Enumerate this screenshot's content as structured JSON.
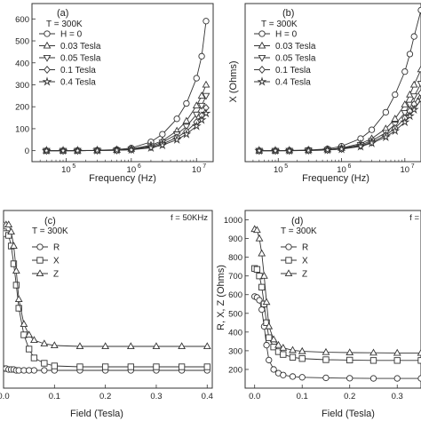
{
  "colors": {
    "axis": "#333333",
    "series": "#333333",
    "background": "#ffffff"
  },
  "chart_data": [
    {
      "type": "line",
      "panel_label": "(a)",
      "annotation": "T = 300K",
      "xlabel": "Frequency (Hz)",
      "ylabel": "",
      "xscale": "log",
      "xlim": [
        30000,
        18000000
      ],
      "ylim": [
        -50,
        670
      ],
      "xticks": [
        100000,
        1000000,
        10000000
      ],
      "xtick_labels": [
        "10",
        "10",
        "10"
      ],
      "xtick_exponents": [
        "5",
        "6",
        "7"
      ],
      "yticks": [
        0,
        100,
        200,
        300,
        400,
        500,
        600
      ],
      "ytick_labels": [
        "0",
        "100",
        "200",
        "300",
        "400",
        "500",
        "600"
      ],
      "legend_position": "top-left",
      "x": [
        50000,
        90000,
        150000,
        300000,
        600000,
        1000000,
        2000000,
        3000000,
        5000000,
        7000000,
        10000000,
        12000000,
        14000000
      ],
      "series": [
        {
          "name": "H = 0",
          "marker": "circle",
          "values": [
            0,
            0,
            1,
            2,
            5,
            12,
            40,
            75,
            145,
            215,
            330,
            430,
            590
          ]
        },
        {
          "name": "0.03 Tesla",
          "marker": "triangle-up",
          "values": [
            0,
            0,
            0,
            1,
            3,
            8,
            25,
            45,
            90,
            135,
            205,
            250,
            300
          ]
        },
        {
          "name": "0.05 Tesla",
          "marker": "triangle-down",
          "values": [
            0,
            0,
            0,
            1,
            2,
            6,
            20,
            38,
            75,
            110,
            165,
            205,
            250
          ]
        },
        {
          "name": "0.1 Tesla",
          "marker": "diamond",
          "values": [
            0,
            0,
            0,
            1,
            2,
            5,
            16,
            30,
            60,
            88,
            130,
            160,
            195
          ]
        },
        {
          "name": "0.4 Tesla",
          "marker": "star",
          "values": [
            0,
            0,
            0,
            1,
            2,
            4,
            13,
            25,
            50,
            75,
            112,
            140,
            170
          ]
        }
      ]
    },
    {
      "type": "line",
      "panel_label": "(b)",
      "annotation": "T = 300K",
      "xlabel": "Frequency (Hz)",
      "ylabel": "X (Ohms)",
      "xscale": "log",
      "xlim": [
        30000,
        18000000
      ],
      "ylim": [
        -50,
        670
      ],
      "xticks": [
        100000,
        1000000,
        10000000
      ],
      "xtick_labels": [
        "10",
        "10",
        "10"
      ],
      "xtick_exponents": [
        "5",
        "6",
        "7"
      ],
      "yticks": [],
      "ytick_labels": [],
      "legend_position": "top-left",
      "x": [
        50000,
        90000,
        150000,
        300000,
        600000,
        1000000,
        2000000,
        3000000,
        5000000,
        7000000,
        10000000,
        12000000,
        14000000,
        18000000
      ],
      "series": [
        {
          "name": "H = 0",
          "marker": "circle",
          "values": [
            0,
            0,
            1,
            3,
            8,
            20,
            55,
            95,
            175,
            255,
            360,
            440,
            520,
            640
          ]
        },
        {
          "name": "0.03 Tesla",
          "marker": "triangle-up",
          "values": [
            0,
            0,
            1,
            2,
            5,
            12,
            32,
            55,
            100,
            145,
            210,
            255,
            300,
            370
          ]
        },
        {
          "name": "0.05 Tesla",
          "marker": "triangle-down",
          "values": [
            0,
            0,
            0,
            2,
            4,
            10,
            26,
            45,
            82,
            120,
            172,
            210,
            248,
            305
          ]
        },
        {
          "name": "0.1 Tesla",
          "marker": "diamond",
          "values": [
            0,
            0,
            0,
            1,
            3,
            8,
            22,
            38,
            70,
            102,
            148,
            180,
            212,
            262
          ]
        },
        {
          "name": "0.4 Tesla",
          "marker": "star",
          "values": [
            0,
            0,
            0,
            1,
            3,
            7,
            19,
            34,
            62,
            90,
            130,
            158,
            187,
            232
          ]
        }
      ]
    },
    {
      "type": "line",
      "panel_label": "(c)",
      "annotation": "T = 300K",
      "corner_note": "f = 50KHz",
      "xlabel": "Field (Tesla)",
      "ylabel": "",
      "xlim": [
        0,
        0.41
      ],
      "ylim": [
        0,
        100
      ],
      "xticks": [
        0,
        0.1,
        0.2,
        0.3,
        0.4
      ],
      "xtick_labels": [
        "0.0",
        "0.1",
        "0.2",
        "0.3",
        "0.4"
      ],
      "yticks": [],
      "ytick_labels": [],
      "legend_position": "top-left",
      "x": [
        0,
        0.005,
        0.01,
        0.015,
        0.02,
        0.025,
        0.03,
        0.04,
        0.05,
        0.06,
        0.08,
        0.1,
        0.15,
        0.2,
        0.25,
        0.3,
        0.35,
        0.4
      ],
      "series": [
        {
          "name": "R",
          "marker": "circle",
          "values": [
            11,
            11,
            10.5,
            10.5,
            10.5,
            10,
            10,
            10,
            10,
            10,
            10,
            10,
            10,
            10,
            10,
            10,
            10,
            10
          ]
        },
        {
          "name": "X",
          "marker": "square",
          "values": [
            88,
            87,
            86,
            80,
            70,
            58,
            45,
            30,
            22,
            17,
            14,
            12.5,
            12,
            12,
            12,
            12,
            12,
            12
          ]
        },
        {
          "name": "Z",
          "marker": "triangle-up",
          "values": [
            92,
            92,
            92,
            88,
            80,
            66,
            50,
            36,
            30,
            27,
            25,
            24,
            23.5,
            23.5,
            23.5,
            23.5,
            23.5,
            23.5
          ]
        }
      ]
    },
    {
      "type": "line",
      "panel_label": "(d)",
      "annotation": "T = 300K",
      "corner_note": "f =",
      "xlabel": "Field (Tesla)",
      "ylabel": "R, X, Z (Ohms)",
      "xlim": [
        -0.02,
        0.35
      ],
      "ylim": [
        100,
        1050
      ],
      "xticks": [
        0,
        0.1,
        0.2,
        0.3
      ],
      "xtick_labels": [
        "0.0",
        "0.1",
        "0.2",
        "0.3"
      ],
      "yticks": [
        200,
        300,
        400,
        500,
        600,
        700,
        800,
        900,
        1000
      ],
      "ytick_labels": [
        "200",
        "300",
        "400",
        "500",
        "600",
        "700",
        "800",
        "900",
        "1000"
      ],
      "legend_position": "top-left",
      "x": [
        0,
        0.005,
        0.01,
        0.015,
        0.02,
        0.025,
        0.03,
        0.04,
        0.05,
        0.06,
        0.08,
        0.1,
        0.15,
        0.2,
        0.25,
        0.3,
        0.35
      ],
      "series": [
        {
          "name": "R",
          "marker": "circle",
          "values": [
            590,
            585,
            570,
            520,
            430,
            330,
            250,
            200,
            180,
            170,
            162,
            158,
            155,
            153,
            152,
            152,
            152
          ]
        },
        {
          "name": "X",
          "marker": "square",
          "values": [
            740,
            735,
            700,
            640,
            550,
            450,
            370,
            320,
            295,
            280,
            265,
            258,
            252,
            250,
            248,
            248,
            248
          ]
        },
        {
          "name": "Z",
          "marker": "triangle-up",
          "values": [
            950,
            945,
            900,
            820,
            700,
            560,
            430,
            360,
            330,
            315,
            303,
            297,
            292,
            290,
            289,
            288,
            288
          ]
        }
      ]
    }
  ]
}
